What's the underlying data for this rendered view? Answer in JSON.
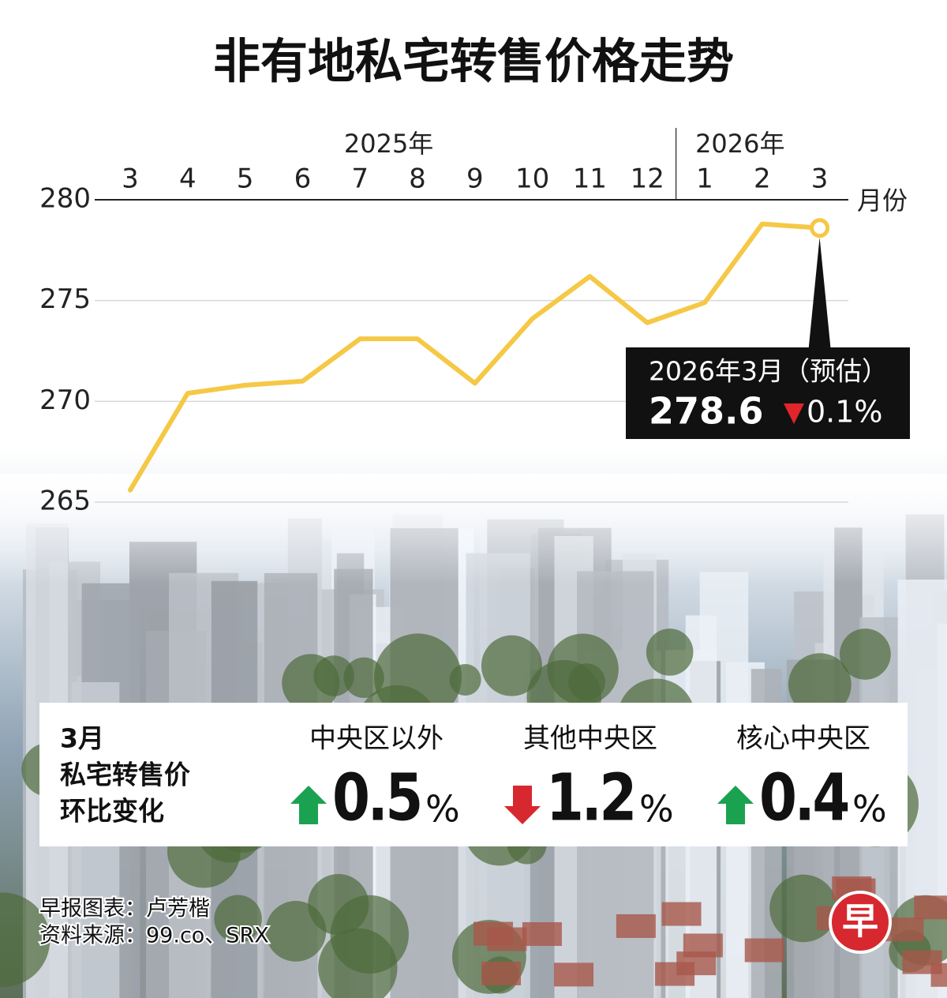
{
  "chart_data": {
    "type": "line",
    "title": "非有地私宅转售价格走势",
    "x_groups": [
      "2025年",
      "2026年"
    ],
    "categories": [
      "3",
      "4",
      "5",
      "6",
      "7",
      "8",
      "9",
      "10",
      "11",
      "12",
      "1",
      "2",
      "3"
    ],
    "x_label": "月份",
    "values": [
      265.6,
      270.4,
      270.8,
      271.0,
      273.1,
      273.1,
      270.9,
      274.1,
      276.2,
      273.9,
      274.9,
      278.8,
      278.6
    ],
    "color": "#f5c845",
    "ylim": [
      265,
      280
    ],
    "yticks": [
      265,
      270,
      275,
      280
    ],
    "grid": true,
    "annotation": {
      "title": "2026年3月（预估）",
      "change_label": "0.1%",
      "change_direction": "down"
    }
  },
  "summary": {
    "heading": [
      "3月",
      "私宅转售价",
      "环比变化"
    ],
    "regions": [
      {
        "name": "中央区以外",
        "change": "0.5",
        "unit": "%",
        "direction": "up"
      },
      {
        "name": "其他中央区",
        "change": "1.2",
        "unit": "%",
        "direction": "down"
      },
      {
        "name": "核心中央区",
        "change": "0.4",
        "unit": "%",
        "direction": "up"
      }
    ]
  },
  "credits": [
    "早报图表：卢芳楷",
    "资料来源：99.co、SRX"
  ],
  "logo": "早"
}
